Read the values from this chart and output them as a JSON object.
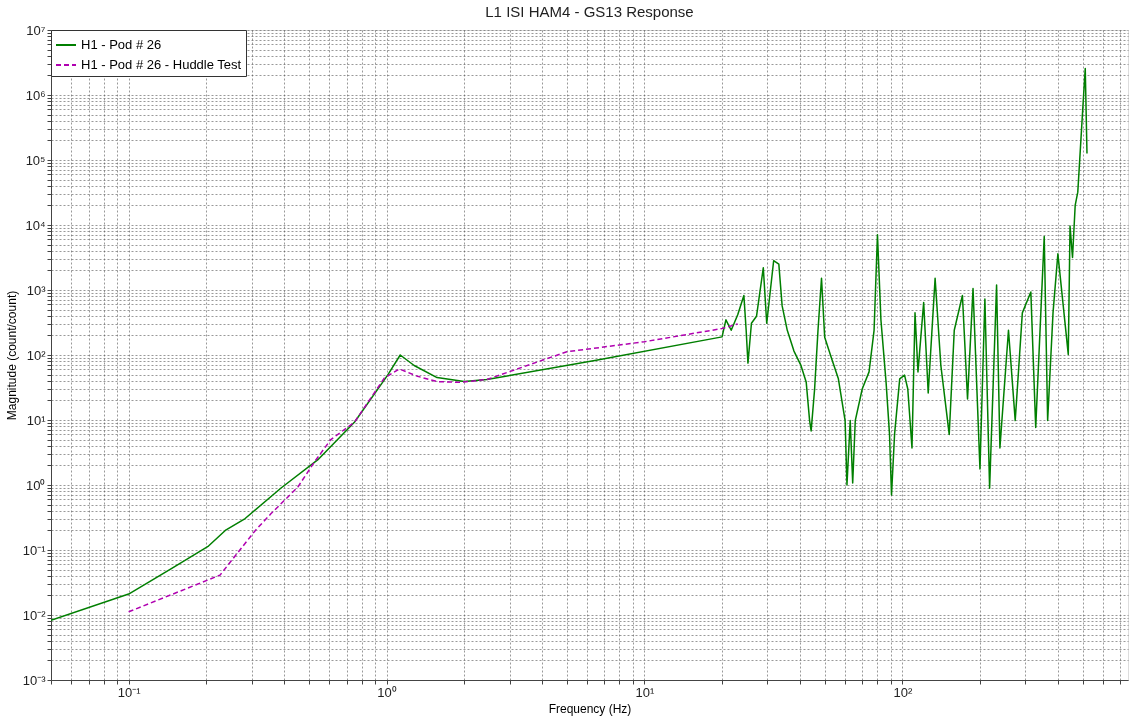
{
  "chart_data": {
    "type": "line",
    "title": "L1 ISI HAM4 - GS13 Response",
    "xlabel": "Frequency (Hz)",
    "ylabel": "Magnitude (count/count)",
    "log": "xy",
    "grid": true,
    "legend": "top left",
    "xlim": [
      0.05,
      750
    ],
    "ylim": [
      0.001,
      10000000
    ],
    "xticks": [
      {
        "value": 0.1,
        "label": "10⁻¹"
      },
      {
        "value": 1,
        "label": "10⁰"
      },
      {
        "value": 10,
        "label": "10¹"
      },
      {
        "value": 100,
        "label": "10²"
      }
    ],
    "yticks": [
      {
        "value": 0.001,
        "label": "10⁻³"
      },
      {
        "value": 0.01,
        "label": "10⁻²"
      },
      {
        "value": 0.1,
        "label": "10⁻¹"
      },
      {
        "value": 1,
        "label": "10⁰"
      },
      {
        "value": 10,
        "label": "10¹"
      },
      {
        "value": 100,
        "label": "10²"
      },
      {
        "value": 1000,
        "label": "10³"
      },
      {
        "value": 10000,
        "label": "10⁴"
      },
      {
        "value": 100000,
        "label": "10⁵"
      },
      {
        "value": 1000000,
        "label": "10⁶"
      },
      {
        "value": 10000000,
        "label": "10⁷"
      }
    ],
    "series": [
      {
        "name": "H1 - Pod # 26",
        "color": "#007f00",
        "line_style": "solid",
        "x": [
          0.05,
          0.1,
          0.147,
          0.204,
          0.237,
          0.283,
          0.39,
          0.542,
          0.752,
          1.01,
          1.13,
          1.28,
          1.57,
          2.0,
          2.45,
          6.5,
          20,
          20.7,
          21.7,
          23,
          24.3,
          24.8,
          25.2,
          26,
          27.2,
          28.9,
          29.8,
          31.7,
          33.2,
          34.2,
          35.8,
          38,
          40.4,
          42.4,
          43.7,
          44.3,
          45.7,
          47.1,
          48.6,
          50,
          53.1,
          56.5,
          60,
          61,
          62.8,
          64.2,
          65.7,
          69.9,
          74.3,
          77.7,
          80.1,
          82.6,
          86.5,
          89.2,
          90.8,
          93.3,
          97.7,
          102,
          105,
          109,
          112,
          115,
          121,
          126,
          134,
          141,
          152,
          159,
          171,
          179,
          188,
          200,
          209,
          218,
          232,
          239,
          258,
          274,
          292,
          315,
          329,
          355,
          366,
          384,
          401,
          440,
          447,
          457,
          468,
          479,
          501,
          512,
          520
        ],
        "values": [
          0.0083,
          0.021,
          0.052,
          0.115,
          0.2,
          0.305,
          0.9,
          2.45,
          9.3,
          49,
          100,
          69,
          45,
          39,
          42,
          83,
          190,
          348,
          240,
          417,
          824,
          240,
          75,
          308,
          394,
          2200,
          308,
          2820,
          2500,
          569,
          240,
          115,
          70,
          38,
          9.8,
          6.8,
          30,
          240,
          1520,
          188,
          90,
          43,
          9.8,
          1.0,
          9.8,
          1.07,
          9.8,
          30,
          55,
          240,
          7100,
          348,
          38,
          6,
          0.7,
          6,
          43,
          49,
          30,
          3.7,
          445,
          55,
          644,
          26,
          1520,
          70,
          6,
          240,
          824,
          21,
          1050,
          1.76,
          728,
          0.89,
          1190,
          3.7,
          240,
          9.8,
          445,
          931,
          7.7,
          6670,
          9.8,
          445,
          3600,
          102,
          9640,
          3160,
          20000,
          32000,
          630000,
          2560000,
          126000
        ]
      },
      {
        "name": "H1 - Pod # 26 - Huddle Test",
        "color": "#b000b0",
        "line_style": "dashed",
        "x": [
          0.1,
          0.226,
          0.31,
          0.356,
          0.453,
          0.527,
          0.608,
          0.752,
          0.98,
          1.12,
          1.32,
          1.57,
          1.93,
          2.45,
          5,
          10,
          20,
          23
        ],
        "values": [
          0.0112,
          0.041,
          0.2,
          0.36,
          0.93,
          2.3,
          5,
          9.3,
          44,
          61,
          47,
          39,
          38,
          42,
          112,
          160,
          255,
          300
        ]
      }
    ]
  }
}
